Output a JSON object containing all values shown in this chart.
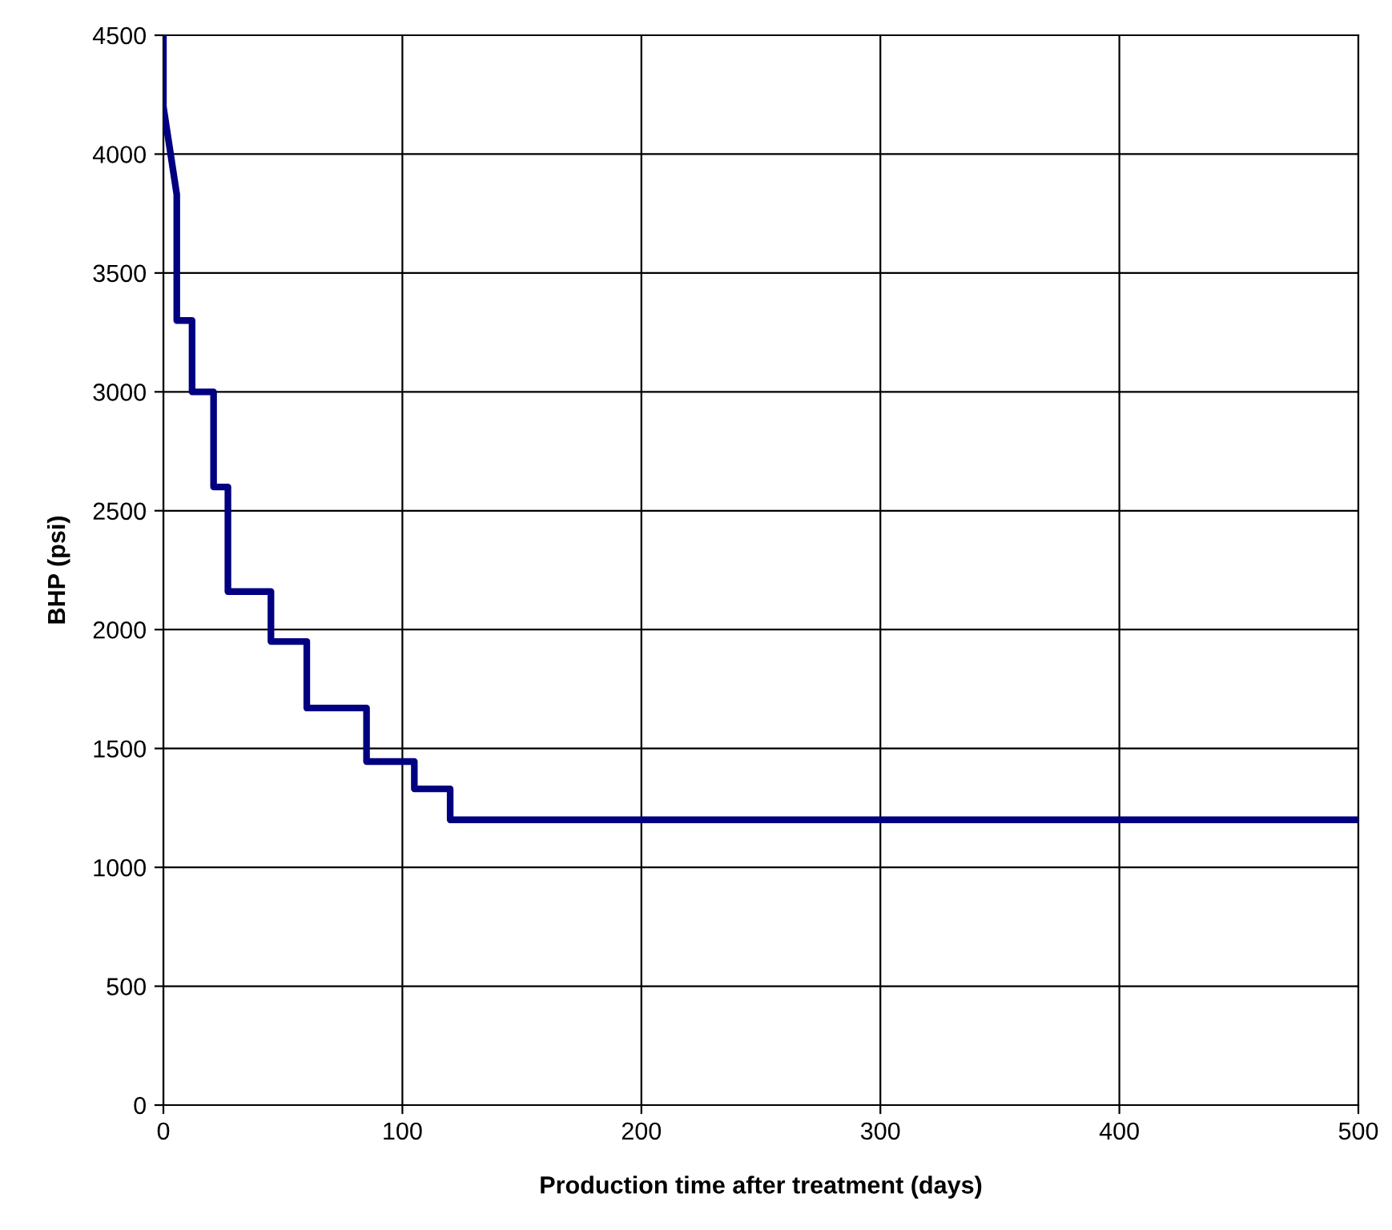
{
  "chart_data": {
    "type": "line",
    "xlabel": "Production time after treatment (days)",
    "ylabel": "BHP (psi)",
    "x": [
      0,
      0,
      5.6,
      5.6,
      12,
      12,
      21,
      21,
      27,
      27,
      45,
      45,
      60,
      60,
      85,
      85,
      105,
      105,
      120,
      120,
      500
    ],
    "series": [
      {
        "color": "#000080",
        "values": [
          4500,
          4200,
          3830,
          3300,
          3300,
          3000,
          3000,
          2600,
          2600,
          2160,
          2160,
          1950,
          1950,
          1670,
          1670,
          1445,
          1445,
          1330,
          1330,
          1200,
          1200
        ]
      }
    ],
    "xlim": [
      0,
      500
    ],
    "xticks": [
      0,
      100,
      200,
      300,
      400,
      500
    ],
    "ylim": [
      0,
      4500
    ],
    "yticks": [
      0,
      500,
      1000,
      1500,
      2000,
      2500,
      3000,
      3500,
      4000,
      4500
    ],
    "grid": true,
    "marker": "none",
    "line_style": "solid"
  }
}
